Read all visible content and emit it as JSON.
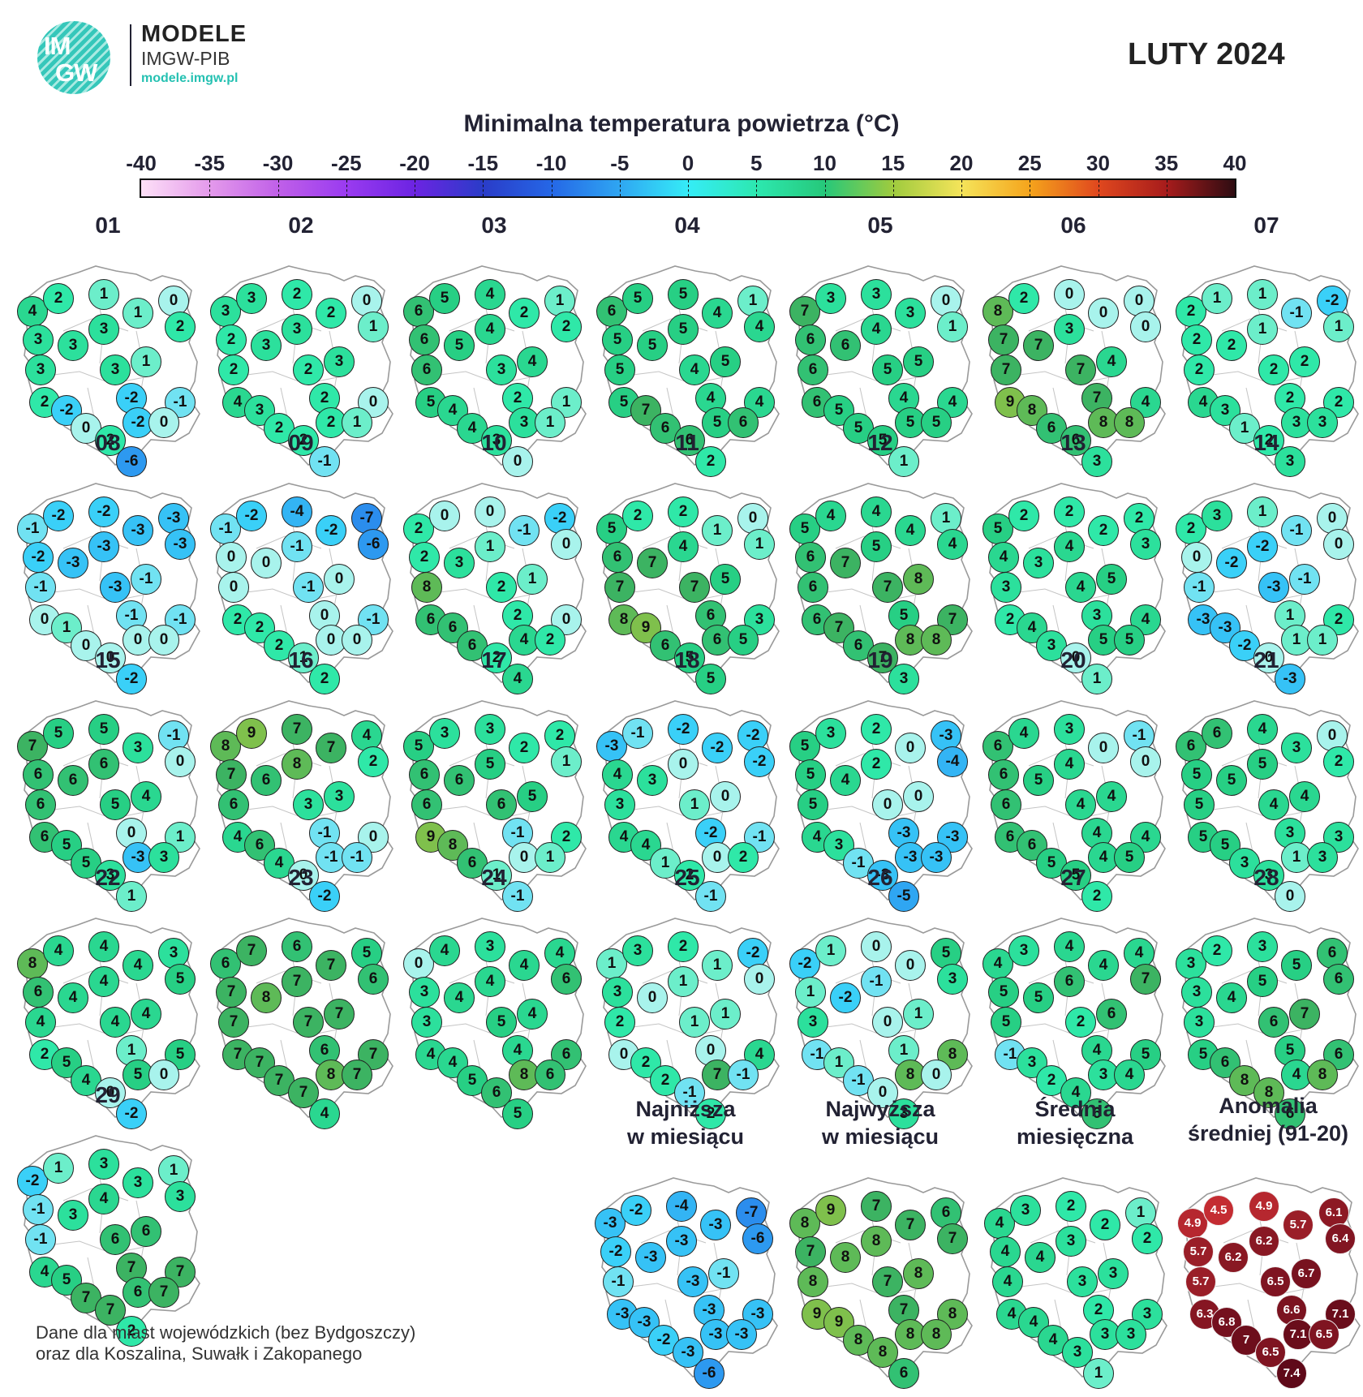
{
  "header": {
    "logo": {
      "line1": "IM",
      "line2": "GW",
      "brand": "MODELE",
      "subtitle": "IMGW-PIB",
      "url": "modele.imgw.pl"
    },
    "month": "LUTY 2024"
  },
  "colorbar": {
    "title": "Minimalna temperatura powietrza (°C)",
    "ticks": [
      "-40",
      "-35",
      "-30",
      "-25",
      "-20",
      "-15",
      "-10",
      "-5",
      "0",
      "5",
      "10",
      "15",
      "20",
      "25",
      "30",
      "35",
      "40"
    ]
  },
  "daily_maps": [
    {
      "label": "01",
      "values": [
        4,
        2,
        1,
        1,
        0,
        3,
        3,
        3,
        2,
        3,
        3,
        1,
        2,
        -2,
        -2,
        -1,
        0,
        2,
        -2,
        0,
        -6
      ]
    },
    {
      "label": "02",
      "values": [
        3,
        3,
        2,
        2,
        0,
        2,
        3,
        3,
        1,
        2,
        2,
        3,
        4,
        3,
        2,
        0,
        2,
        2,
        2,
        1,
        -1
      ]
    },
    {
      "label": "03",
      "values": [
        6,
        5,
        4,
        2,
        1,
        6,
        5,
        4,
        2,
        6,
        3,
        4,
        5,
        4,
        2,
        1,
        4,
        3,
        3,
        1,
        0
      ]
    },
    {
      "label": "04",
      "values": [
        6,
        5,
        5,
        4,
        1,
        5,
        5,
        5,
        4,
        5,
        4,
        5,
        5,
        7,
        4,
        4,
        6,
        6,
        5,
        6,
        2
      ]
    },
    {
      "label": "05",
      "values": [
        7,
        3,
        3,
        3,
        0,
        6,
        6,
        4,
        1,
        6,
        5,
        5,
        6,
        5,
        4,
        4,
        5,
        5,
        5,
        5,
        1
      ]
    },
    {
      "label": "06",
      "values": [
        8,
        2,
        0,
        0,
        0,
        7,
        7,
        3,
        0,
        7,
        7,
        4,
        9,
        8,
        7,
        4,
        6,
        6,
        8,
        8,
        3
      ]
    },
    {
      "label": "07",
      "values": [
        2,
        1,
        1,
        -1,
        -2,
        2,
        2,
        1,
        1,
        2,
        2,
        2,
        4,
        3,
        2,
        2,
        1,
        2,
        3,
        3,
        3
      ]
    },
    {
      "label": "08",
      "values": [
        -1,
        -2,
        -2,
        -3,
        -3,
        -2,
        -3,
        -3,
        -3,
        -1,
        -3,
        -1,
        0,
        1,
        -1,
        -1,
        0,
        0,
        0,
        0,
        -2
      ]
    },
    {
      "label": "09",
      "values": [
        -1,
        -2,
        -4,
        -2,
        -7,
        0,
        0,
        -1,
        -6,
        0,
        -1,
        0,
        2,
        2,
        0,
        -1,
        2,
        1,
        0,
        0,
        2
      ]
    },
    {
      "label": "10",
      "values": [
        2,
        0,
        0,
        -1,
        -2,
        2,
        3,
        1,
        0,
        8,
        2,
        1,
        6,
        6,
        2,
        0,
        6,
        2,
        4,
        2,
        4
      ]
    },
    {
      "label": "11",
      "values": [
        5,
        2,
        2,
        1,
        0,
        6,
        7,
        4,
        1,
        7,
        7,
        5,
        8,
        9,
        6,
        3,
        6,
        5,
        6,
        5,
        5
      ]
    },
    {
      "label": "12",
      "values": [
        5,
        4,
        4,
        4,
        1,
        6,
        7,
        5,
        4,
        6,
        7,
        8,
        6,
        7,
        5,
        7,
        6,
        7,
        8,
        8,
        3
      ]
    },
    {
      "label": "13",
      "values": [
        5,
        2,
        2,
        2,
        2,
        4,
        3,
        4,
        3,
        3,
        4,
        5,
        2,
        4,
        3,
        4,
        3,
        0,
        5,
        5,
        1
      ]
    },
    {
      "label": "14",
      "values": [
        2,
        3,
        1,
        -1,
        0,
        0,
        -2,
        -2,
        0,
        -1,
        -3,
        -1,
        -3,
        -3,
        1,
        2,
        -2,
        0,
        1,
        1,
        -3
      ]
    },
    {
      "label": "15",
      "values": [
        7,
        5,
        5,
        3,
        -1,
        6,
        6,
        6,
        0,
        6,
        5,
        4,
        6,
        5,
        0,
        1,
        5,
        3,
        -3,
        3,
        1
      ]
    },
    {
      "label": "16",
      "values": [
        8,
        9,
        7,
        7,
        4,
        7,
        6,
        8,
        2,
        6,
        3,
        3,
        4,
        6,
        -1,
        0,
        4,
        0,
        -1,
        -1,
        -2
      ]
    },
    {
      "label": "17",
      "values": [
        5,
        3,
        3,
        2,
        2,
        6,
        6,
        5,
        1,
        6,
        6,
        5,
        9,
        8,
        -1,
        2,
        6,
        1,
        0,
        1,
        -1
      ]
    },
    {
      "label": "18",
      "values": [
        -3,
        -1,
        -2,
        -2,
        -2,
        4,
        3,
        0,
        -2,
        3,
        1,
        0,
        4,
        4,
        -2,
        -1,
        1,
        2,
        0,
        2,
        -1
      ]
    },
    {
      "label": "19",
      "values": [
        5,
        3,
        2,
        0,
        -3,
        5,
        4,
        2,
        -4,
        5,
        0,
        0,
        4,
        3,
        -3,
        -3,
        -1,
        -3,
        -3,
        -3,
        -5
      ]
    },
    {
      "label": "20",
      "values": [
        6,
        4,
        3,
        0,
        -1,
        6,
        5,
        4,
        0,
        6,
        4,
        4,
        6,
        6,
        4,
        4,
        5,
        5,
        4,
        5,
        2
      ]
    },
    {
      "label": "21",
      "values": [
        6,
        6,
        4,
        3,
        0,
        5,
        5,
        5,
        2,
        5,
        4,
        4,
        5,
        5,
        3,
        3,
        3,
        3,
        1,
        3,
        0
      ]
    },
    {
      "label": "22",
      "values": [
        8,
        4,
        4,
        4,
        3,
        6,
        4,
        4,
        5,
        4,
        4,
        4,
        2,
        5,
        1,
        5,
        4,
        0,
        5,
        0,
        -2
      ]
    },
    {
      "label": "23",
      "values": [
        6,
        7,
        6,
        7,
        5,
        7,
        8,
        7,
        6,
        7,
        7,
        7,
        7,
        7,
        6,
        7,
        7,
        7,
        8,
        7,
        4
      ]
    },
    {
      "label": "24",
      "values": [
        0,
        4,
        3,
        4,
        4,
        3,
        4,
        4,
        6,
        3,
        5,
        4,
        4,
        4,
        4,
        6,
        5,
        6,
        8,
        6,
        5
      ]
    },
    {
      "label": "25",
      "values": [
        1,
        3,
        2,
        1,
        -2,
        3,
        0,
        1,
        0,
        2,
        1,
        1,
        0,
        2,
        0,
        4,
        2,
        -1,
        7,
        -1,
        2
      ]
    },
    {
      "label": "26",
      "values": [
        -2,
        1,
        0,
        0,
        5,
        1,
        -2,
        -1,
        3,
        3,
        0,
        1,
        -1,
        1,
        1,
        8,
        -1,
        0,
        8,
        0,
        3
      ]
    },
    {
      "label": "27",
      "values": [
        4,
        3,
        4,
        4,
        4,
        5,
        5,
        6,
        7,
        5,
        2,
        6,
        -1,
        3,
        4,
        5,
        2,
        4,
        3,
        4,
        6
      ]
    },
    {
      "label": "28",
      "values": [
        3,
        2,
        3,
        5,
        6,
        3,
        4,
        5,
        6,
        3,
        6,
        7,
        5,
        6,
        5,
        6,
        8,
        8,
        4,
        8,
        6
      ]
    },
    {
      "label": "29",
      "values": [
        -2,
        1,
        3,
        3,
        1,
        -1,
        3,
        4,
        3,
        -1,
        6,
        6,
        4,
        5,
        7,
        7,
        7,
        7,
        6,
        7,
        2
      ]
    }
  ],
  "summary_maps": [
    {
      "title_line1": "Najniższa",
      "title_line2": "w miesiącu",
      "values": [
        -3,
        -2,
        -4,
        -3,
        -7,
        -2,
        -3,
        -3,
        -6,
        -1,
        -3,
        -1,
        -3,
        -3,
        -3,
        -3,
        -2,
        -3,
        -3,
        -3,
        -6
      ]
    },
    {
      "title_line1": "Najwyższa",
      "title_line2": "w miesiącu",
      "values": [
        8,
        9,
        7,
        7,
        6,
        7,
        8,
        8,
        7,
        8,
        7,
        8,
        9,
        9,
        7,
        8,
        8,
        8,
        8,
        8,
        6
      ]
    },
    {
      "title_line1": "Średnia",
      "title_line2": "miesięczna",
      "values": [
        4,
        3,
        2,
        2,
        1,
        4,
        4,
        3,
        2,
        4,
        3,
        3,
        4,
        4,
        2,
        3,
        4,
        3,
        3,
        3,
        1
      ]
    },
    {
      "title_line1": "Anomalia",
      "title_line2": "średniej (91-20)",
      "values": [
        4.9,
        4.5,
        4.9,
        5.7,
        6.1,
        5.7,
        6.2,
        6.2,
        6.4,
        5.7,
        6.5,
        6.7,
        6.3,
        6.8,
        6.6,
        7.1,
        7.0,
        6.5,
        7.1,
        6.5,
        7.4
      ]
    }
  ],
  "footnote": {
    "line1": "Dane dla miast wojewódzkich (bez Bydgoszczy)",
    "line2": "oraz dla Koszalina, Suwałk i Zakopanego"
  }
}
